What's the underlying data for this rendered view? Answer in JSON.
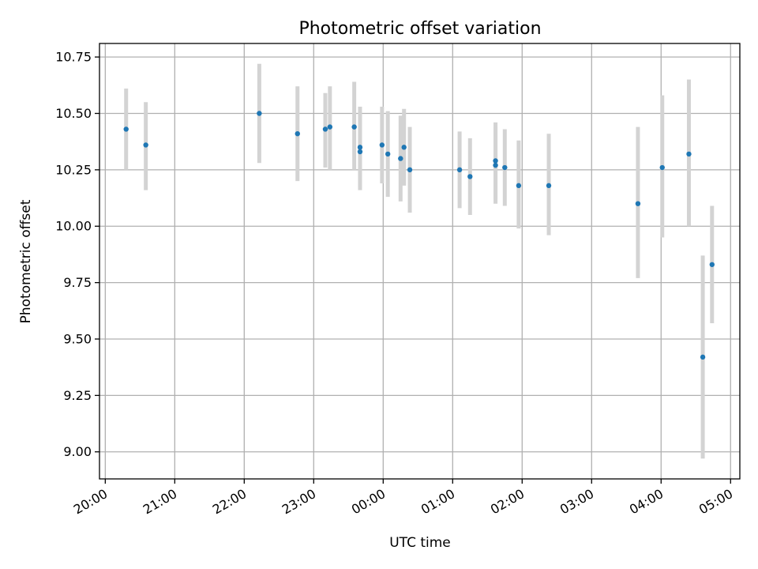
{
  "chart_data": {
    "type": "scatter",
    "title": "Photometric offset variation",
    "xlabel": "UTC time",
    "ylabel": "Photometric offset",
    "x_axis": "time",
    "xlim": [
      "19:55",
      "05:08"
    ],
    "ylim": [
      8.88,
      10.81
    ],
    "grid": true,
    "legend": "none",
    "x_ticks": [
      "20:00",
      "21:00",
      "22:00",
      "23:00",
      "00:00",
      "01:00",
      "02:00",
      "03:00",
      "04:00",
      "05:00"
    ],
    "y_ticks": [
      "9.00",
      "9.25",
      "9.50",
      "9.75",
      "10.00",
      "10.25",
      "10.50",
      "10.75"
    ],
    "colors": {
      "point": "#1f77b4",
      "errorbar": "#d3d3d3",
      "grid": "#b0b0b0"
    },
    "points": [
      {
        "time": "20:18",
        "y": 10.43,
        "ylow": 10.25,
        "yhigh": 10.61
      },
      {
        "time": "20:35",
        "y": 10.36,
        "ylow": 10.16,
        "yhigh": 10.55
      },
      {
        "time": "22:13",
        "y": 10.5,
        "ylow": 10.28,
        "yhigh": 10.72
      },
      {
        "time": "22:46",
        "y": 10.41,
        "ylow": 10.2,
        "yhigh": 10.62
      },
      {
        "time": "23:10",
        "y": 10.43,
        "ylow": 10.26,
        "yhigh": 10.59
      },
      {
        "time": "23:14",
        "y": 10.44,
        "ylow": 10.25,
        "yhigh": 10.62
      },
      {
        "time": "23:35",
        "y": 10.44,
        "ylow": 10.25,
        "yhigh": 10.64
      },
      {
        "time": "23:40",
        "y": 10.35,
        "ylow": 10.17,
        "yhigh": 10.53
      },
      {
        "time": "23:40",
        "y": 10.33,
        "ylow": 10.16,
        "yhigh": 10.5
      },
      {
        "time": "23:59",
        "y": 10.36,
        "ylow": 10.19,
        "yhigh": 10.53
      },
      {
        "time": "00:04",
        "y": 10.32,
        "ylow": 10.13,
        "yhigh": 10.51
      },
      {
        "time": "00:15",
        "y": 10.3,
        "ylow": 10.11,
        "yhigh": 10.49
      },
      {
        "time": "00:18",
        "y": 10.35,
        "ylow": 10.18,
        "yhigh": 10.52
      },
      {
        "time": "00:23",
        "y": 10.25,
        "ylow": 10.06,
        "yhigh": 10.44
      },
      {
        "time": "01:06",
        "y": 10.25,
        "ylow": 10.08,
        "yhigh": 10.42
      },
      {
        "time": "01:15",
        "y": 10.22,
        "ylow": 10.05,
        "yhigh": 10.39
      },
      {
        "time": "01:37",
        "y": 10.27,
        "ylow": 10.1,
        "yhigh": 10.44
      },
      {
        "time": "01:37",
        "y": 10.29,
        "ylow": 10.12,
        "yhigh": 10.46
      },
      {
        "time": "01:45",
        "y": 10.26,
        "ylow": 10.09,
        "yhigh": 10.43
      },
      {
        "time": "01:57",
        "y": 10.18,
        "ylow": 9.99,
        "yhigh": 10.38
      },
      {
        "time": "02:23",
        "y": 10.18,
        "ylow": 9.96,
        "yhigh": 10.41
      },
      {
        "time": "03:40",
        "y": 10.1,
        "ylow": 9.77,
        "yhigh": 10.44
      },
      {
        "time": "04:01",
        "y": 10.26,
        "ylow": 9.95,
        "yhigh": 10.58
      },
      {
        "time": "04:24",
        "y": 10.32,
        "ylow": 10.0,
        "yhigh": 10.65
      },
      {
        "time": "04:36",
        "y": 9.42,
        "ylow": 8.97,
        "yhigh": 9.87
      },
      {
        "time": "04:44",
        "y": 9.83,
        "ylow": 9.57,
        "yhigh": 10.09
      }
    ]
  }
}
